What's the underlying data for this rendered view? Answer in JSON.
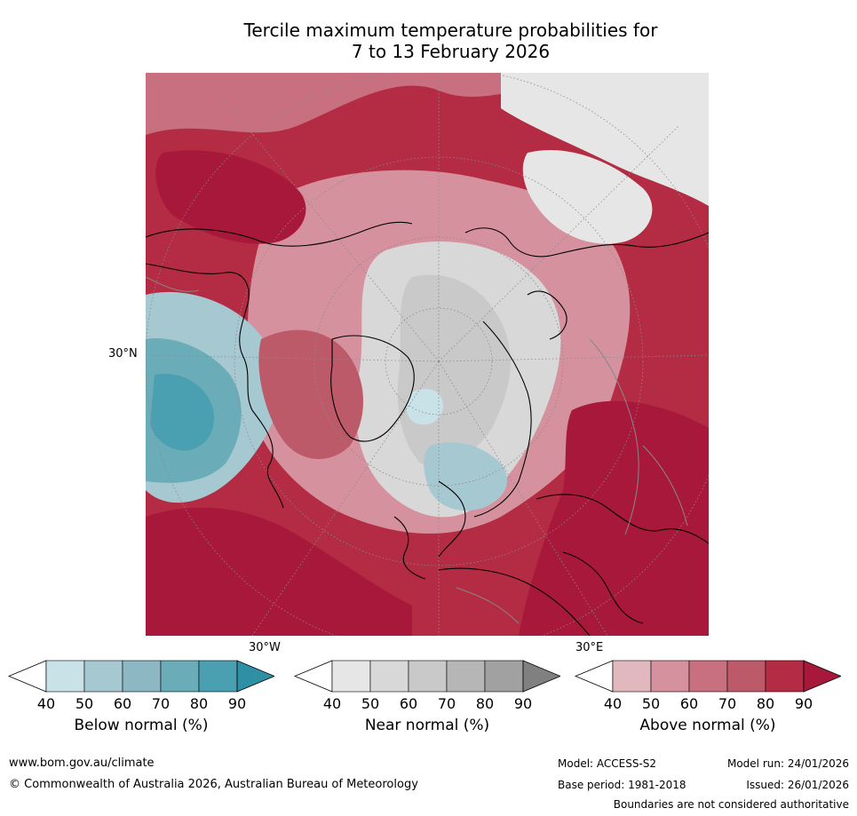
{
  "title": {
    "line1": "Tercile maximum temperature probabilities for",
    "line2": "7 to 13 February 2026"
  },
  "map": {
    "axis_labels": {
      "lat_30n": "30°N",
      "lon_30w": "30°W",
      "lon_30e": "30°E"
    },
    "colors": {
      "above": [
        "#e2b8bf",
        "#d5919d",
        "#c8707f",
        "#bd5a6a",
        "#b42c43",
        "#a8183a"
      ],
      "near": [
        "#e6e6e6",
        "#d8d8d8",
        "#c9c9c9",
        "#b6b6b6",
        "#a1a1a1",
        "#808080"
      ],
      "below": [
        "#c9e2e8",
        "#a6c8d0",
        "#8db7c3",
        "#6aacb8",
        "#4aa0b0",
        "#2f8fa4"
      ]
    }
  },
  "colorbars": [
    {
      "title": "Below normal (%)",
      "ticks": [
        "40",
        "50",
        "60",
        "70",
        "80",
        "90"
      ]
    },
    {
      "title": "Near normal (%)",
      "ticks": [
        "40",
        "50",
        "60",
        "70",
        "80",
        "90"
      ]
    },
    {
      "title": "Above normal (%)",
      "ticks": [
        "40",
        "50",
        "60",
        "70",
        "80",
        "90"
      ]
    }
  ],
  "footer": {
    "url": "www.bom.gov.au/climate",
    "copyright": "© Commonwealth of Australia 2026, Australian Bureau of Meteorology",
    "model": "Model: ACCESS-S2",
    "model_run": "Model run: 24/01/2026",
    "base_period": "Base period: 1981-2018",
    "issued": "Issued: 26/01/2026",
    "disclaimer": "Boundaries are not considered authoritative"
  }
}
